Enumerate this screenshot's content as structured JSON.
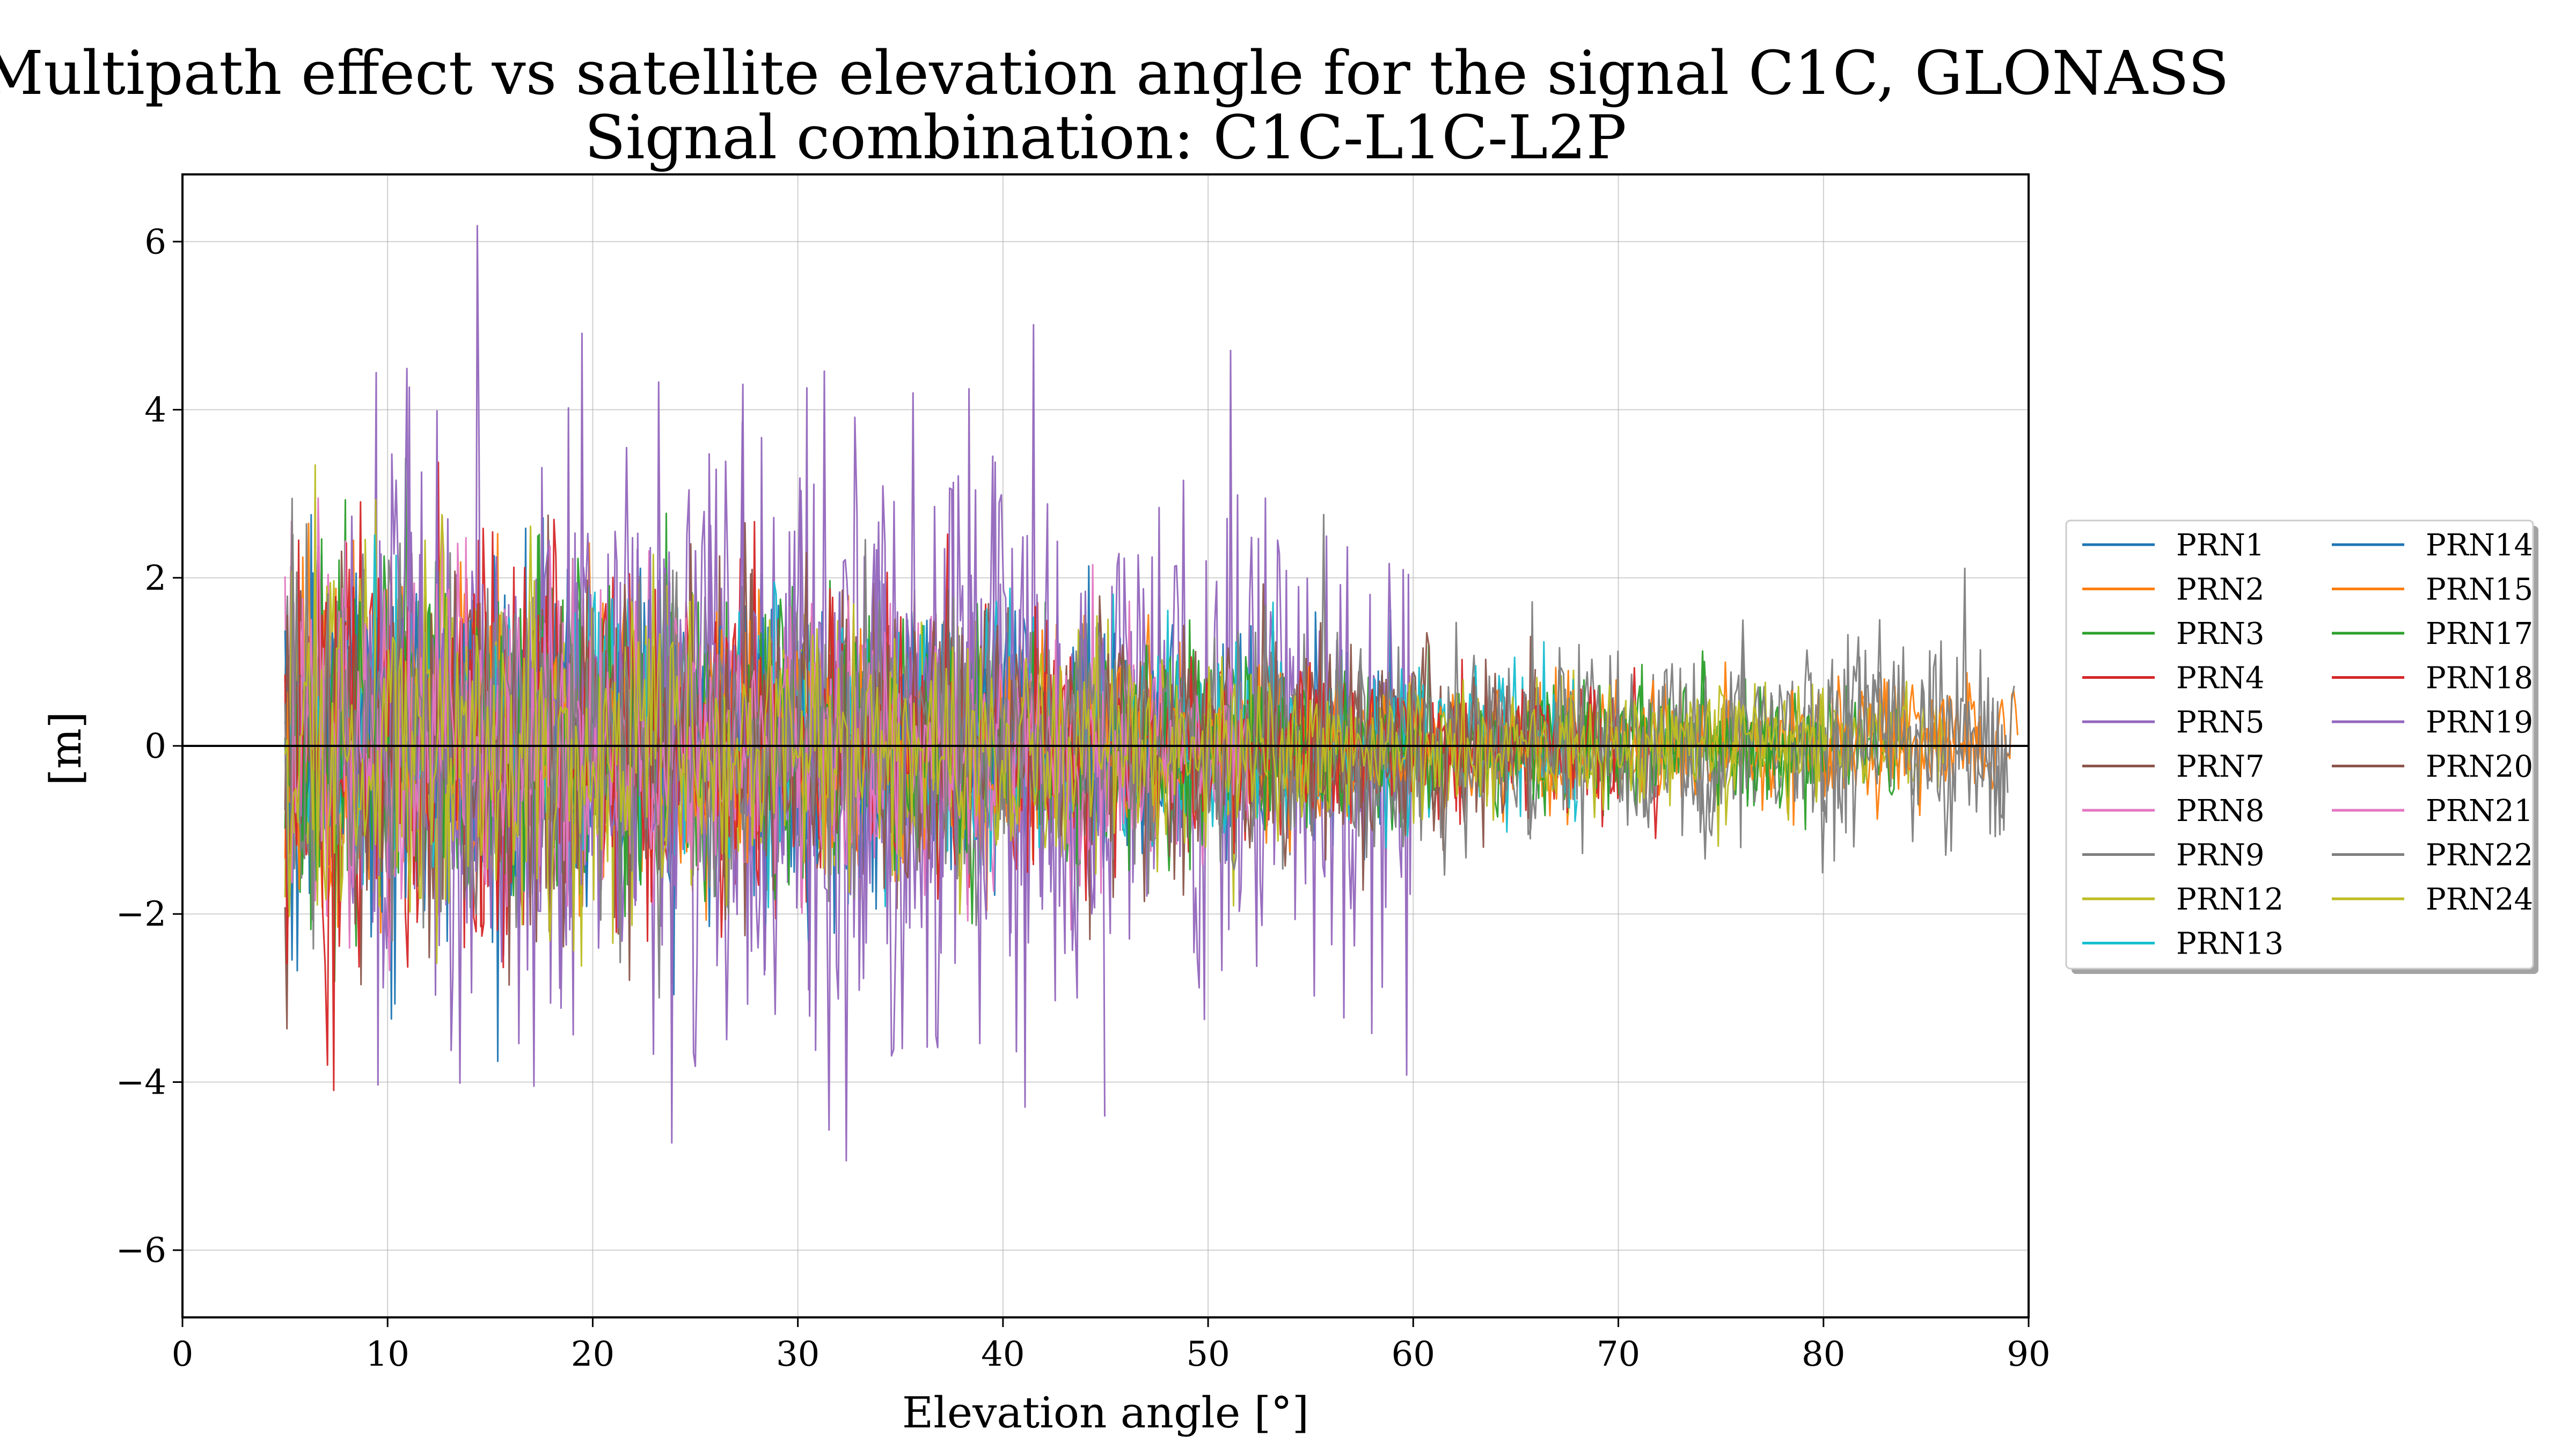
{
  "chart_data": {
    "type": "line",
    "title": "Multipath effect vs satellite elevation angle for the signal C1C, GLONASS",
    "subtitle": "Signal combination: C1C-L1C-L2P",
    "xlabel": "Elevation angle [°]",
    "ylabel": "[m]",
    "xlim": [
      0,
      90
    ],
    "ylim": [
      -6.8,
      6.8
    ],
    "xticks": [
      0,
      10,
      20,
      30,
      40,
      50,
      60,
      70,
      80,
      90
    ],
    "yticks": [
      -6,
      -4,
      -2,
      0,
      2,
      4,
      6
    ],
    "ytick_labels": [
      "−6",
      "−4",
      "−2",
      "0",
      "2",
      "4",
      "6"
    ],
    "grid": true,
    "legend_position": "right",
    "series": [
      {
        "name": "PRN1",
        "color": "#1f77b4",
        "x_range": [
          5.0,
          60.0
        ],
        "spread_low": 1.6,
        "spread_high": 0.7
      },
      {
        "name": "PRN2",
        "color": "#ff7f0e",
        "x_range": [
          5.2,
          89.5
        ],
        "spread_low": 1.5,
        "spread_high": 0.45
      },
      {
        "name": "PRN3",
        "color": "#2ca02c",
        "x_range": [
          5.0,
          84.0
        ],
        "spread_low": 1.6,
        "spread_high": 0.5
      },
      {
        "name": "PRN4",
        "color": "#d62728",
        "x_range": [
          5.0,
          72.0
        ],
        "spread_low": 1.7,
        "spread_high": 0.5
      },
      {
        "name": "PRN5",
        "color": "#9467bd",
        "x_range": [
          8.0,
          60.0
        ],
        "spread_low": 2.5,
        "spread_high": 2.0
      },
      {
        "name": "PRN7",
        "color": "#8c564b",
        "x_range": [
          5.0,
          62.0
        ],
        "spread_low": 1.5,
        "spread_high": 0.8
      },
      {
        "name": "PRN8",
        "color": "#e377c2",
        "x_range": [
          5.0,
          50.0
        ],
        "spread_low": 1.6,
        "spread_high": 0.7
      },
      {
        "name": "PRN9",
        "color": "#7f7f7f",
        "x_range": [
          5.0,
          89.3
        ],
        "spread_low": 1.5,
        "spread_high": 0.7
      },
      {
        "name": "PRN12",
        "color": "#bcbd22",
        "x_range": [
          5.0,
          86.0
        ],
        "spread_low": 1.5,
        "spread_high": 0.45
      },
      {
        "name": "PRN13",
        "color": "#17becf",
        "x_range": [
          5.0,
          68.0
        ],
        "spread_low": 1.4,
        "spread_high": 0.6
      },
      {
        "name": "PRN14",
        "color": "#1f77b4",
        "x_range": [
          5.0,
          48.0
        ],
        "spread_low": 1.4,
        "spread_high": 0.6
      },
      {
        "name": "PRN15",
        "color": "#ff7f0e",
        "x_range": [
          5.0,
          88.0
        ],
        "spread_low": 1.3,
        "spread_high": 0.45
      },
      {
        "name": "PRN17",
        "color": "#2ca02c",
        "x_range": [
          5.0,
          80.0
        ],
        "spread_low": 1.5,
        "spread_high": 0.5
      },
      {
        "name": "PRN18",
        "color": "#d62728",
        "x_range": [
          5.0,
          70.0
        ],
        "spread_low": 1.5,
        "spread_high": 0.5
      },
      {
        "name": "PRN19",
        "color": "#9467bd",
        "x_range": [
          8.0,
          45.0
        ],
        "spread_low": 2.5,
        "spread_high": 2.0
      },
      {
        "name": "PRN20",
        "color": "#8c564b",
        "x_range": [
          5.0,
          66.0
        ],
        "spread_low": 1.4,
        "spread_high": 0.7
      },
      {
        "name": "PRN21",
        "color": "#e377c2",
        "x_range": [
          5.0,
          52.0
        ],
        "spread_low": 1.4,
        "spread_high": 0.6
      },
      {
        "name": "PRN22",
        "color": "#7f7f7f",
        "x_range": [
          5.0,
          89.0
        ],
        "spread_low": 1.4,
        "spread_high": 0.8
      },
      {
        "name": "PRN24",
        "color": "#bcbd22",
        "x_range": [
          5.0,
          80.0
        ],
        "spread_low": 1.4,
        "spread_high": 0.45
      }
    ],
    "zero_line": true
  }
}
